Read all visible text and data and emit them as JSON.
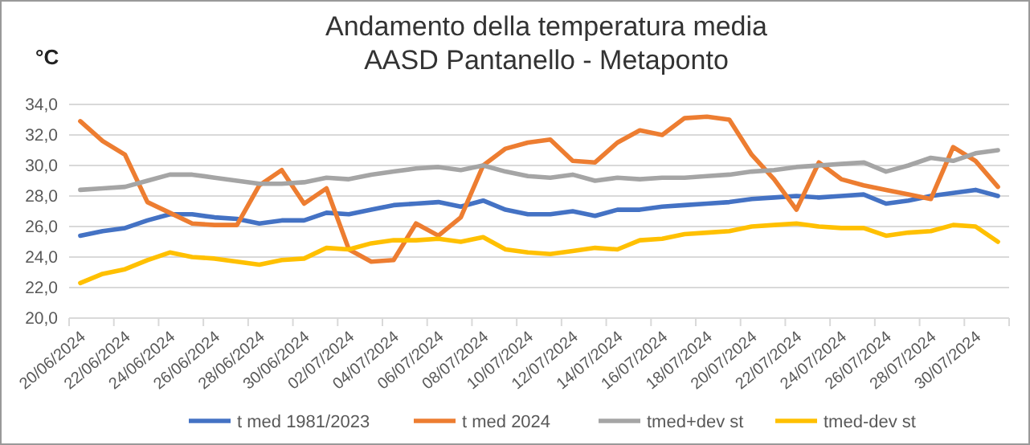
{
  "chart_data": {
    "type": "line",
    "title": "Andamento della temperatura media\nAASD Pantanello - Metaponto",
    "ylabel": "°C",
    "categories": [
      "20/06/2024",
      null,
      "22/06/2024",
      null,
      "24/06/2024",
      null,
      "26/06/2024",
      null,
      "28/06/2024",
      null,
      "30/06/2024",
      null,
      "02/07/2024",
      null,
      "04/07/2024",
      null,
      "06/07/2024",
      null,
      "08/07/2024",
      null,
      "10/07/2024",
      null,
      "12/07/2024",
      null,
      "14/07/2024",
      null,
      "16/07/2024",
      null,
      "18/07/2024",
      null,
      "20/07/2024",
      null,
      "22/07/2024",
      null,
      "24/07/2024",
      null,
      "26/07/2024",
      null,
      "28/07/2024",
      null,
      "30/07/2024",
      null
    ],
    "series": [
      {
        "name": "t med 1981/2023",
        "color": "#4472c4",
        "values": [
          25.4,
          25.7,
          25.9,
          26.4,
          26.8,
          26.8,
          26.6,
          26.5,
          26.2,
          26.4,
          26.4,
          26.9,
          26.8,
          27.1,
          27.4,
          27.5,
          27.6,
          27.3,
          27.7,
          27.1,
          26.8,
          26.8,
          27.0,
          26.7,
          27.1,
          27.1,
          27.3,
          27.4,
          27.5,
          27.6,
          27.8,
          27.9,
          28.0,
          27.9,
          28.0,
          28.1,
          27.5,
          27.7,
          28.0,
          28.2,
          28.4,
          28.0
        ]
      },
      {
        "name": "t med 2024",
        "color": "#ed7d31",
        "values": [
          32.9,
          31.6,
          30.7,
          27.6,
          26.9,
          26.2,
          26.1,
          26.1,
          28.7,
          29.7,
          27.5,
          28.5,
          24.5,
          23.7,
          23.8,
          26.2,
          25.4,
          26.6,
          30.0,
          31.1,
          31.5,
          31.7,
          30.3,
          30.2,
          31.5,
          32.3,
          32.0,
          33.1,
          33.2,
          33.0,
          30.7,
          29.1,
          27.1,
          30.2,
          29.1,
          28.7,
          28.4,
          28.1,
          27.8,
          31.2,
          30.3,
          28.6
        ]
      },
      {
        "name": "tmed+dev st",
        "color": "#a5a5a5",
        "values": [
          28.4,
          28.5,
          28.6,
          29.0,
          29.4,
          29.4,
          29.2,
          29.0,
          28.8,
          28.8,
          28.9,
          29.2,
          29.1,
          29.4,
          29.6,
          29.8,
          29.9,
          29.7,
          30.0,
          29.6,
          29.3,
          29.2,
          29.4,
          29.0,
          29.2,
          29.1,
          29.2,
          29.2,
          29.3,
          29.4,
          29.6,
          29.7,
          29.9,
          30.0,
          30.1,
          30.2,
          29.6,
          30.0,
          30.5,
          30.3,
          30.8,
          31.0
        ]
      },
      {
        "name": "tmed-dev st",
        "color": "#ffc000",
        "values": [
          22.3,
          22.9,
          23.2,
          23.8,
          24.3,
          24.0,
          23.9,
          23.7,
          23.5,
          23.8,
          23.9,
          24.6,
          24.5,
          24.9,
          25.1,
          25.1,
          25.2,
          25.0,
          25.3,
          24.5,
          24.3,
          24.2,
          24.4,
          24.6,
          24.5,
          25.1,
          25.2,
          25.5,
          25.6,
          25.7,
          26.0,
          26.1,
          26.2,
          26.0,
          25.9,
          25.9,
          25.4,
          25.6,
          25.7,
          26.1,
          26.0,
          25.0
        ]
      }
    ],
    "ylim": [
      20,
      34
    ],
    "yticks": [
      {
        "value": 20,
        "label": "20,0"
      },
      {
        "value": 22,
        "label": "22,0"
      },
      {
        "value": 24,
        "label": "24,0"
      },
      {
        "value": 26,
        "label": "26,0"
      },
      {
        "value": 28,
        "label": "28,0"
      },
      {
        "value": 30,
        "label": "30,0"
      },
      {
        "value": 32,
        "label": "32,0"
      },
      {
        "value": 34,
        "label": "34,0"
      }
    ],
    "grid": "y",
    "legend": "bottom",
    "marker": "none",
    "line_style": "solid"
  }
}
